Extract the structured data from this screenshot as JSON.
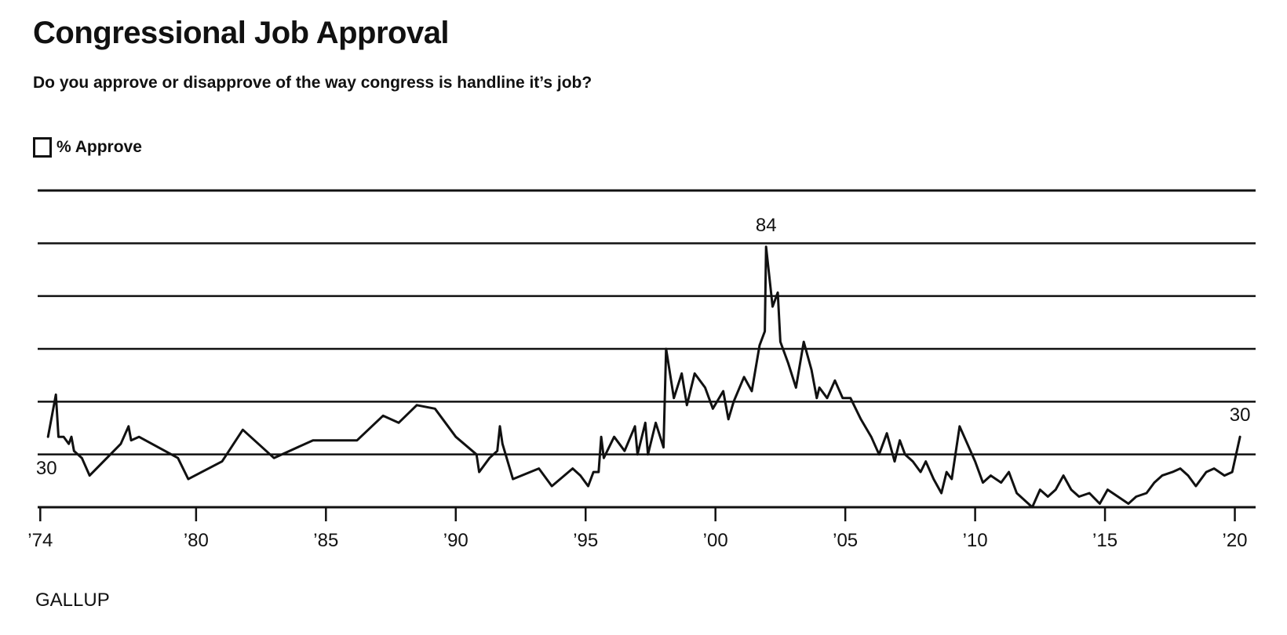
{
  "header": {
    "title": "Congressional Job Approval",
    "subtitle": "Do you approve or disapprove of the way congress is handline it’s job?"
  },
  "legend": {
    "label": "% Approve"
  },
  "footer": {
    "brand": "GALLUP"
  },
  "colors": {
    "line": "#111111",
    "grid": "#111111",
    "background": "#ffffff"
  },
  "chart_data": {
    "type": "line",
    "title": "Congressional Job Approval",
    "subtitle": "Do you approve or disapprove of the way congress is handline it’s job?",
    "xlabel": "",
    "ylabel": "",
    "xlim": [
      1973.9,
      2020.8
    ],
    "ylim": [
      10,
      100
    ],
    "yticks": [
      10,
      25,
      40,
      55,
      70,
      85,
      100
    ],
    "xticks": [
      {
        "value": 1974,
        "label": "’74"
      },
      {
        "value": 1980,
        "label": "’80"
      },
      {
        "value": 1985,
        "label": "’85"
      },
      {
        "value": 1990,
        "label": "’90"
      },
      {
        "value": 1995,
        "label": "’95"
      },
      {
        "value": 2000,
        "label": "’00"
      },
      {
        "value": 2005,
        "label": "’05"
      },
      {
        "value": 2010,
        "label": "’10"
      },
      {
        "value": 2015,
        "label": "’15"
      },
      {
        "value": 2020,
        "label": "’20"
      }
    ],
    "grid": true,
    "legend_position": "top-left",
    "series": [
      {
        "name": "% Approve",
        "points": [
          [
            1974.3,
            30
          ],
          [
            1974.6,
            42
          ],
          [
            1974.7,
            30
          ],
          [
            1974.9,
            30
          ],
          [
            1975.1,
            28
          ],
          [
            1975.2,
            30
          ],
          [
            1975.3,
            26
          ],
          [
            1975.6,
            24
          ],
          [
            1975.9,
            19
          ],
          [
            1977.1,
            28
          ],
          [
            1977.4,
            33
          ],
          [
            1977.5,
            29
          ],
          [
            1977.8,
            30
          ],
          [
            1979.3,
            24
          ],
          [
            1979.7,
            18
          ],
          [
            1981.0,
            23
          ],
          [
            1981.8,
            32
          ],
          [
            1983.0,
            24
          ],
          [
            1984.5,
            29
          ],
          [
            1986.2,
            29
          ],
          [
            1987.2,
            36
          ],
          [
            1987.8,
            34
          ],
          [
            1988.5,
            39
          ],
          [
            1989.2,
            38
          ],
          [
            1990.0,
            30
          ],
          [
            1990.8,
            25
          ],
          [
            1990.9,
            20
          ],
          [
            1991.3,
            24
          ],
          [
            1991.6,
            26
          ],
          [
            1991.7,
            33
          ],
          [
            1991.8,
            28
          ],
          [
            1992.2,
            18
          ],
          [
            1993.2,
            21
          ],
          [
            1993.7,
            16
          ],
          [
            1994.5,
            21
          ],
          [
            1994.8,
            19
          ],
          [
            1995.1,
            16
          ],
          [
            1995.3,
            20
          ],
          [
            1995.5,
            20
          ],
          [
            1995.6,
            30
          ],
          [
            1995.7,
            24
          ],
          [
            1996.1,
            30
          ],
          [
            1996.5,
            26
          ],
          [
            1996.9,
            33
          ],
          [
            1997.0,
            25
          ],
          [
            1997.3,
            34
          ],
          [
            1997.4,
            25
          ],
          [
            1997.7,
            34
          ],
          [
            1998.0,
            27
          ],
          [
            1998.1,
            55
          ],
          [
            1998.4,
            41
          ],
          [
            1998.7,
            48
          ],
          [
            1998.9,
            39
          ],
          [
            1999.2,
            48
          ],
          [
            1999.6,
            44
          ],
          [
            1999.9,
            38
          ],
          [
            2000.3,
            43
          ],
          [
            2000.5,
            35
          ],
          [
            2000.7,
            40
          ],
          [
            2001.1,
            47
          ],
          [
            2001.4,
            43
          ],
          [
            2001.7,
            56
          ],
          [
            2001.9,
            60
          ],
          [
            2001.95,
            84
          ],
          [
            2002.2,
            67
          ],
          [
            2002.4,
            71
          ],
          [
            2002.5,
            57
          ],
          [
            2002.8,
            51
          ],
          [
            2003.1,
            44
          ],
          [
            2003.4,
            57
          ],
          [
            2003.7,
            49
          ],
          [
            2003.9,
            41
          ],
          [
            2004.0,
            44
          ],
          [
            2004.3,
            41
          ],
          [
            2004.6,
            46
          ],
          [
            2004.9,
            41
          ],
          [
            2005.2,
            41
          ],
          [
            2005.6,
            35
          ],
          [
            2006.0,
            30
          ],
          [
            2006.3,
            25
          ],
          [
            2006.6,
            31
          ],
          [
            2006.9,
            23
          ],
          [
            2007.1,
            29
          ],
          [
            2007.3,
            25
          ],
          [
            2007.6,
            23
          ],
          [
            2007.9,
            20
          ],
          [
            2008.1,
            23
          ],
          [
            2008.4,
            18
          ],
          [
            2008.7,
            14
          ],
          [
            2008.9,
            20
          ],
          [
            2009.1,
            18
          ],
          [
            2009.4,
            33
          ],
          [
            2009.7,
            28
          ],
          [
            2010.0,
            23
          ],
          [
            2010.3,
            17
          ],
          [
            2010.6,
            19
          ],
          [
            2011.0,
            17
          ],
          [
            2011.3,
            20
          ],
          [
            2011.6,
            14
          ],
          [
            2011.9,
            12
          ],
          [
            2012.2,
            10
          ],
          [
            2012.5,
            15
          ],
          [
            2012.8,
            13
          ],
          [
            2013.1,
            15
          ],
          [
            2013.4,
            19
          ],
          [
            2013.7,
            15
          ],
          [
            2014.0,
            13
          ],
          [
            2014.4,
            14
          ],
          [
            2014.8,
            11
          ],
          [
            2015.1,
            15
          ],
          [
            2015.5,
            13
          ],
          [
            2015.9,
            11
          ],
          [
            2016.2,
            13
          ],
          [
            2016.6,
            14
          ],
          [
            2016.9,
            17
          ],
          [
            2017.2,
            19
          ],
          [
            2017.6,
            20
          ],
          [
            2017.9,
            21
          ],
          [
            2018.2,
            19
          ],
          [
            2018.5,
            16
          ],
          [
            2018.9,
            20
          ],
          [
            2019.2,
            21
          ],
          [
            2019.6,
            19
          ],
          [
            2019.9,
            20
          ],
          [
            2020.2,
            30
          ]
        ]
      }
    ],
    "annotations": [
      {
        "x": 1974.3,
        "y": 30,
        "text": "30",
        "anchor": "below-left"
      },
      {
        "x": 2001.95,
        "y": 84,
        "text": "84",
        "anchor": "above"
      },
      {
        "x": 2020.2,
        "y": 30,
        "text": "30",
        "anchor": "above"
      }
    ]
  }
}
